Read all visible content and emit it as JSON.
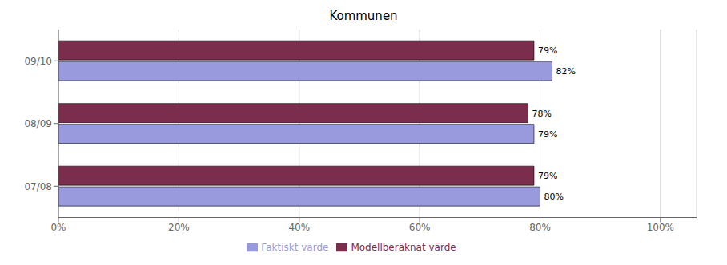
{
  "chart_data": {
    "type": "bar",
    "orientation": "horizontal",
    "title": "Kommunen",
    "categories": [
      "09/10",
      "08/09",
      "07/08"
    ],
    "series": [
      {
        "name": "Modellberäknat värde",
        "color": "#7B2D4E",
        "values": [
          0.79,
          0.78,
          0.79
        ],
        "value_labels": [
          "79%",
          "78%",
          "79%"
        ]
      },
      {
        "name": "Faktiskt värde",
        "color": "#9999DD",
        "values": [
          0.82,
          0.79,
          0.8
        ],
        "value_labels": [
          "82%",
          "79%",
          "80%"
        ]
      }
    ],
    "xlim": [
      0.0,
      1.06
    ],
    "xticks": [
      {
        "value": 0.0,
        "label": "0%"
      },
      {
        "value": 0.2,
        "label": "20%"
      },
      {
        "value": 0.4,
        "label": "40%"
      },
      {
        "value": 0.6,
        "label": "60%"
      },
      {
        "value": 0.8,
        "label": "80%"
      },
      {
        "value": 1.0,
        "label": "100%"
      }
    ],
    "grid": true,
    "legend": "bottom",
    "data_labels": true
  }
}
